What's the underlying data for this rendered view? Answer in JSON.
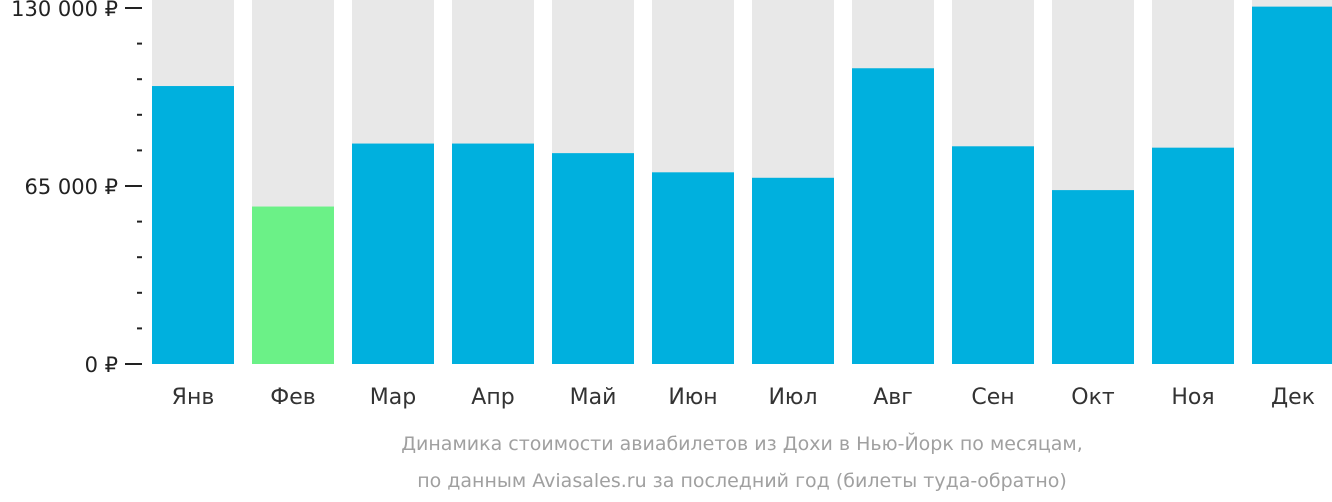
{
  "chart_data": {
    "type": "bar",
    "categories": [
      "Янв",
      "Фев",
      "Мар",
      "Апр",
      "Май",
      "Июн",
      "Июл",
      "Авг",
      "Сен",
      "Окт",
      "Ноя",
      "Дек"
    ],
    "values": [
      101500,
      57500,
      80500,
      80500,
      77000,
      70000,
      68000,
      108000,
      79500,
      63500,
      79000,
      130500
    ],
    "highlight_index": 1,
    "ylim": [
      0,
      130000
    ],
    "yticks": [
      {
        "value": 0,
        "label": "0 ₽"
      },
      {
        "value": 65000,
        "label": "65 000 ₽"
      },
      {
        "value": 130000,
        "label": "130 000 ₽"
      }
    ],
    "minor_tick_step": 13000,
    "caption": [
      "Динамика стоимости авиабилетов из Дохи в Нью-Йорк по месяцам,",
      "по данным Aviasales.ru за последний год (билеты туда-обратно)"
    ],
    "colors": {
      "bar": "#00b0de",
      "highlight": "#6bf187",
      "track": "#e8e8e8",
      "axis": "#222222"
    }
  }
}
